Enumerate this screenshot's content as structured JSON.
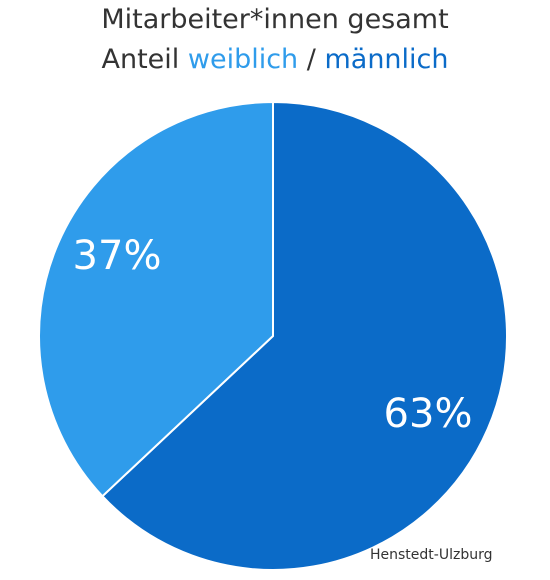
{
  "chart_data": {
    "type": "pie",
    "title": "Mitarbeiter*innen gesamt",
    "subtitle": {
      "prefix": "Anteil",
      "female_word": "weiblich",
      "separator": "/",
      "male_word": "männlich"
    },
    "slices": [
      {
        "name": "männlich",
        "value": 63,
        "label": "63%",
        "color": "#0b6bc8"
      },
      {
        "name": "weiblich",
        "value": 37,
        "label": "37%",
        "color": "#2f9ceb"
      }
    ],
    "start_angle_deg": 0,
    "direction": "clockwise",
    "legend": "none (encoded in subtitle colors)"
  },
  "source_text": "Henstedt-Ulzburg"
}
